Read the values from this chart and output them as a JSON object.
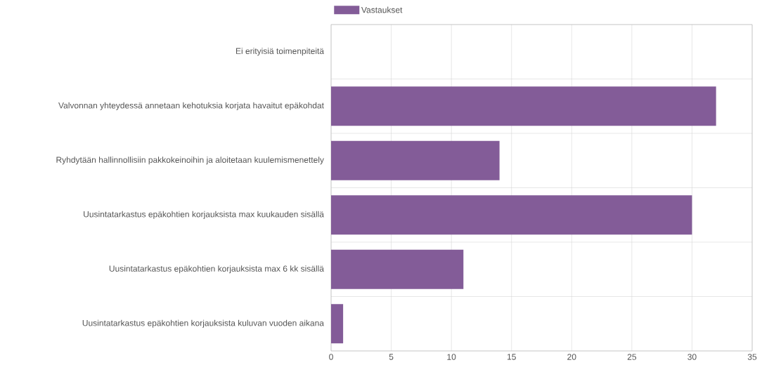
{
  "chart_data": {
    "type": "bar",
    "orientation": "horizontal",
    "categories": [
      "Ei erityisiä toimenpiteitä",
      "Valvonnan yhteydessä annetaan kehotuksia korjata havaitut epäkohdat",
      "Ryhdytään hallinnollisiin pakkokeinoihin ja aloitetaan kuulemismenettely",
      "Uusintatarkastus epäkohtien korjauksista max kuukauden sisällä",
      "Uusintatarkastus epäkohtien korjauksista max 6 kk sisällä",
      "Uusintatarkastus epäkohtien korjauksista kuluvan vuoden aikana"
    ],
    "series": [
      {
        "name": "Vastaukset",
        "color": "#835c98",
        "values": [
          0,
          32,
          14,
          30,
          11,
          1
        ]
      }
    ],
    "xlim": [
      0,
      35
    ],
    "xticks": [
      0,
      5,
      10,
      15,
      20,
      25,
      30,
      35
    ],
    "grid": true,
    "legend": "top"
  }
}
